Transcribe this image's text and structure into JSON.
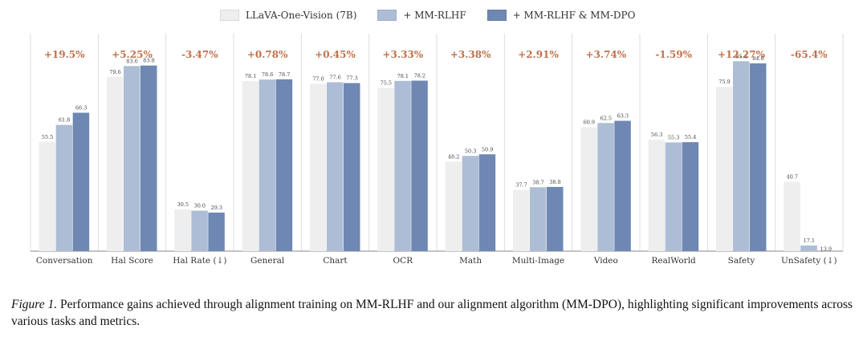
{
  "colors": {
    "series": [
      "#eeeeee",
      "#aebdd6",
      "#6e88b3"
    ],
    "gain": "#c0714a",
    "axis": "#888888",
    "divider": "#dddddd"
  },
  "chart_data": {
    "type": "bar",
    "categories": [
      "Conversation",
      "Hal Score",
      "Hal Rate (↓)",
      "General",
      "Chart",
      "OCR",
      "Math",
      "Multi-Image",
      "Video",
      "RealWorld",
      "Safety",
      "UnSafety (↓)"
    ],
    "gains": [
      "+19.5%",
      "+5.25%",
      "-3.47%",
      "+0.78%",
      "+0.45%",
      "+3.33%",
      "+3.38%",
      "+2.91%",
      "+3.74%",
      "-1.59%",
      "+12.27%",
      "-65.4%"
    ],
    "series": [
      {
        "name": "LLaVA-One-Vision (7B)",
        "values": [
          55.5,
          79.6,
          30.5,
          78.1,
          77.0,
          75.5,
          48.2,
          37.7,
          60.9,
          56.3,
          75.9,
          40.7
        ],
        "labels": [
          "55.5",
          "79.6",
          "30.5",
          "78.1",
          "77.0",
          "75.5",
          "48.2",
          "37.7",
          "60.9",
          "56.3",
          "75.9",
          "40.7"
        ]
      },
      {
        "name": "+ MM-RLHF",
        "values": [
          61.8,
          83.6,
          30.0,
          78.6,
          77.6,
          78.1,
          50.3,
          38.7,
          62.5,
          55.3,
          85.4,
          17.1
        ],
        "labels": [
          "61.8",
          "83.6",
          "30.0",
          "78.6",
          "77.6",
          "78.1",
          "50.3",
          "38.7",
          "62.5",
          "55.3",
          "85.4",
          "17.1"
        ]
      },
      {
        "name": "+ MM-RLHF & MM-DPO",
        "values": [
          66.3,
          83.8,
          29.3,
          78.7,
          77.3,
          78.2,
          50.9,
          38.8,
          63.3,
          55.4,
          84.6,
          13.9
        ],
        "labels": [
          "66.3",
          "83.8",
          "29.3",
          "78.7",
          "77.3",
          "78.2",
          "50.9",
          "38.8",
          "63.3",
          "55.4",
          "84.6",
          "13.9"
        ]
      }
    ],
    "ylim": [
      15,
      95
    ],
    "grid": false,
    "legend": "top-center"
  },
  "caption": {
    "label": "Figure 1.",
    "text": " Performance gains achieved through alignment training on MM-RLHF and our alignment algorithm (MM-DPO), highlighting significant improvements across various tasks and metrics."
  }
}
